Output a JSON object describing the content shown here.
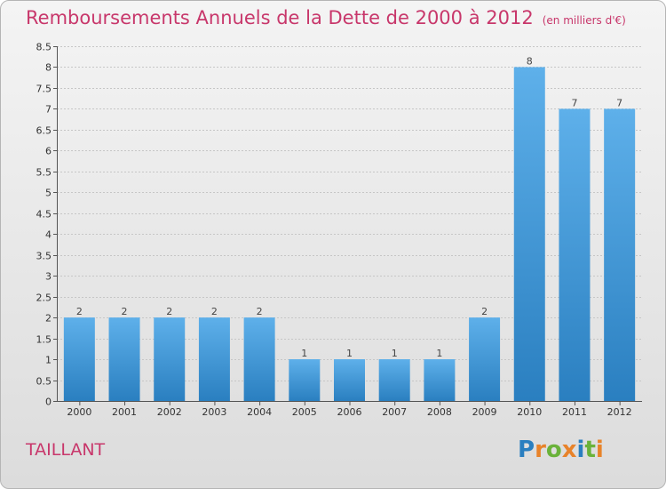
{
  "header": {
    "title": "Remboursements Annuels de la Dette de 2000 à 2012",
    "unit": "(en milliers d'€)"
  },
  "footer": {
    "commune": "TAILLANT",
    "logo_text": "Proxiti"
  },
  "colors": {
    "title": "#c8376b",
    "bar_top": "#5eb0ea",
    "bar_bottom": "#2a7fc0",
    "logo_letters": [
      "#2a7fc0",
      "#e8832a",
      "#6ab23a",
      "#e8832a",
      "#2a7fc0",
      "#6ab23a",
      "#e8832a"
    ]
  },
  "chart_data": {
    "type": "bar",
    "title": "Remboursements Annuels de la Dette de 2000 à 2012",
    "subtitle": "(en milliers d'€)",
    "categories": [
      "2000",
      "2001",
      "2002",
      "2003",
      "2004",
      "2005",
      "2006",
      "2007",
      "2008",
      "2009",
      "2010",
      "2011",
      "2012"
    ],
    "values": [
      2,
      2,
      2,
      2,
      2,
      1,
      1,
      1,
      1,
      2,
      8,
      7,
      7
    ],
    "data_labels": [
      "2",
      "2",
      "2",
      "2",
      "2",
      "1",
      "1",
      "1",
      "1",
      "2",
      "8",
      "7",
      "7"
    ],
    "ylim": [
      0,
      8.5
    ],
    "yticks": [
      "0",
      "0.5",
      "1",
      "1.5",
      "2",
      "2.5",
      "3",
      "3.5",
      "4",
      "4.5",
      "5",
      "5.5",
      "6",
      "6.5",
      "7",
      "7.5",
      "8",
      "8.5"
    ],
    "grid": true,
    "xlabel": "",
    "ylabel": ""
  }
}
